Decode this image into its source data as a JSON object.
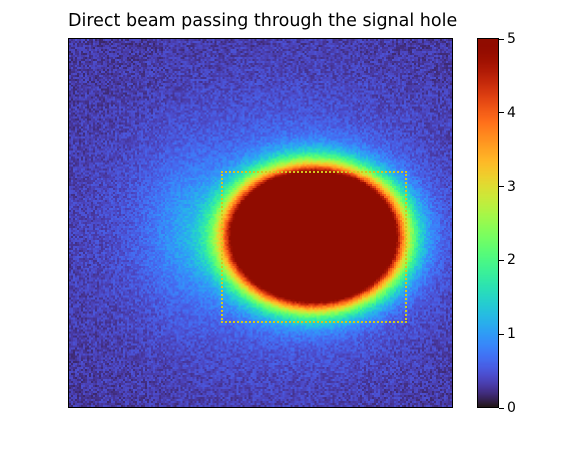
{
  "chart_data": {
    "type": "heatmap",
    "title": "Direct beam passing through the signal hole",
    "xlabel": "",
    "ylabel": "",
    "colormap": "turbo",
    "value_range": [
      0,
      5
    ],
    "colorbar": {
      "ticks": [
        0,
        1,
        2,
        3,
        4,
        5
      ],
      "tick_labels": [
        "0",
        "1",
        "2",
        "3",
        "4",
        "5"
      ]
    },
    "features": {
      "saturated_beam_spot_value": 5,
      "background_noise_level": 0.3,
      "dotted_roi_box": true,
      "roi_box_color": "#d4c51e"
    },
    "grid": false,
    "axis_ticks_shown": false
  }
}
